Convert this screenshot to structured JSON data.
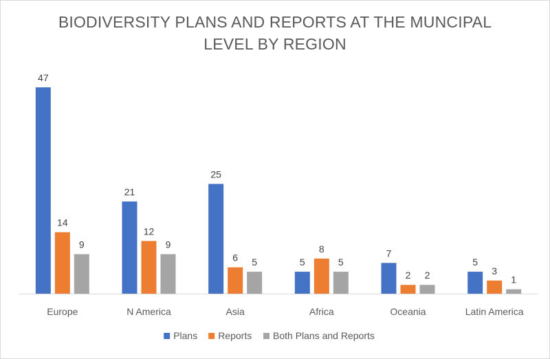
{
  "chart_data": {
    "type": "bar",
    "title_lines": [
      "BIODIVERSITY PLANS AND REPORTS AT THE MUNCIPAL",
      "LEVEL BY REGION"
    ],
    "categories": [
      "Europe",
      "N America",
      "Asia",
      "Africa",
      "Oceania",
      "Latin America"
    ],
    "series": [
      {
        "name": "Plans",
        "color": "#4472c4",
        "values": [
          47,
          21,
          25,
          5,
          7,
          5
        ]
      },
      {
        "name": "Reports",
        "color": "#ed7d31",
        "values": [
          14,
          12,
          6,
          8,
          2,
          3
        ]
      },
      {
        "name": "Both Plans and Reports",
        "color": "#a5a5a5",
        "values": [
          9,
          9,
          5,
          5,
          2,
          1
        ]
      }
    ],
    "ylim": [
      0,
      50
    ],
    "grid": false,
    "legend_position": "bottom",
    "data_labels": true
  }
}
